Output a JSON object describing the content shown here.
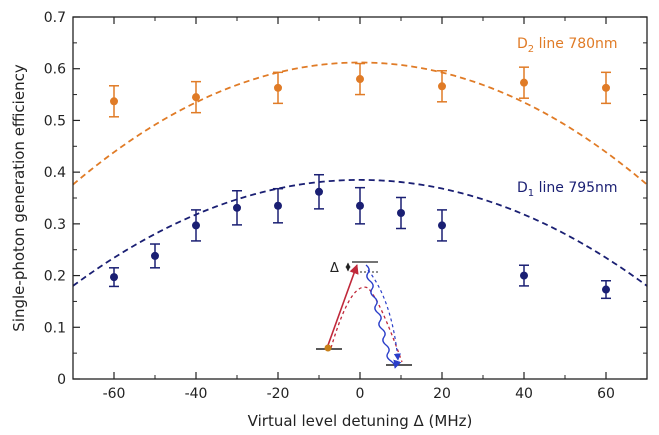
{
  "chart_data": {
    "type": "scatter",
    "xlabel": "Virtual level detuning Δ (MHz)",
    "ylabel": "Single-photon generation efficiency",
    "xlim": [
      -70,
      70
    ],
    "ylim": [
      0,
      0.7
    ],
    "xticks": [
      -60,
      -40,
      -20,
      0,
      20,
      40,
      60
    ],
    "xtick_labels": [
      "-60",
      "-40",
      "-20",
      "0",
      "20",
      "40",
      "60"
    ],
    "yticks": [
      0,
      0.1,
      0.2,
      0.3,
      0.4,
      0.5,
      0.6,
      0.7
    ],
    "ytick_labels": [
      "0",
      "0.1",
      "0.2",
      "0.3",
      "0.4",
      "0.5",
      "0.6",
      "0.7"
    ],
    "grid": false,
    "series": [
      {
        "name": "D2 line 780nm",
        "label_main": "D",
        "label_sub": "2",
        "label_rest": " line 780nm",
        "color": "#e07b26",
        "points": [
          {
            "x": -60,
            "y": 0.537,
            "err": 0.03
          },
          {
            "x": -40,
            "y": 0.545,
            "err": 0.03
          },
          {
            "x": -20,
            "y": 0.563,
            "err": 0.03
          },
          {
            "x": 0,
            "y": 0.58,
            "err": 0.03
          },
          {
            "x": 20,
            "y": 0.566,
            "err": 0.03
          },
          {
            "x": 40,
            "y": 0.573,
            "err": 0.03
          },
          {
            "x": 60,
            "y": 0.563,
            "err": 0.03
          }
        ],
        "fit": {
          "style": "dashed",
          "peak": 0.612,
          "y_at_minus70": 0.376,
          "y_at_plus70": 0.376
        }
      },
      {
        "name": "D1 line 795nm",
        "label_main": "D",
        "label_sub": "1",
        "label_rest": " line 795nm",
        "color": "#1a1f73",
        "points": [
          {
            "x": -60,
            "y": 0.197,
            "err": 0.018
          },
          {
            "x": -50,
            "y": 0.238,
            "err": 0.023
          },
          {
            "x": -40,
            "y": 0.297,
            "err": 0.03
          },
          {
            "x": -30,
            "y": 0.331,
            "err": 0.033
          },
          {
            "x": -20,
            "y": 0.335,
            "err": 0.033
          },
          {
            "x": -10,
            "y": 0.362,
            "err": 0.033
          },
          {
            "x": 0,
            "y": 0.335,
            "err": 0.035
          },
          {
            "x": 10,
            "y": 0.321,
            "err": 0.03
          },
          {
            "x": 20,
            "y": 0.297,
            "err": 0.03
          },
          {
            "x": 40,
            "y": 0.2,
            "err": 0.02
          },
          {
            "x": 60,
            "y": 0.173,
            "err": 0.017
          }
        ],
        "fit": {
          "style": "dashed",
          "peak": 0.385,
          "y_at_minus70": 0.18,
          "y_at_plus70": 0.18
        }
      }
    ],
    "inset": {
      "type": "energy-level-diagram",
      "label": "Δ",
      "colors": {
        "pump": "#c0283a",
        "emission": "#2a3ec9",
        "atom": "#c8801a",
        "level": "#222222"
      }
    }
  }
}
